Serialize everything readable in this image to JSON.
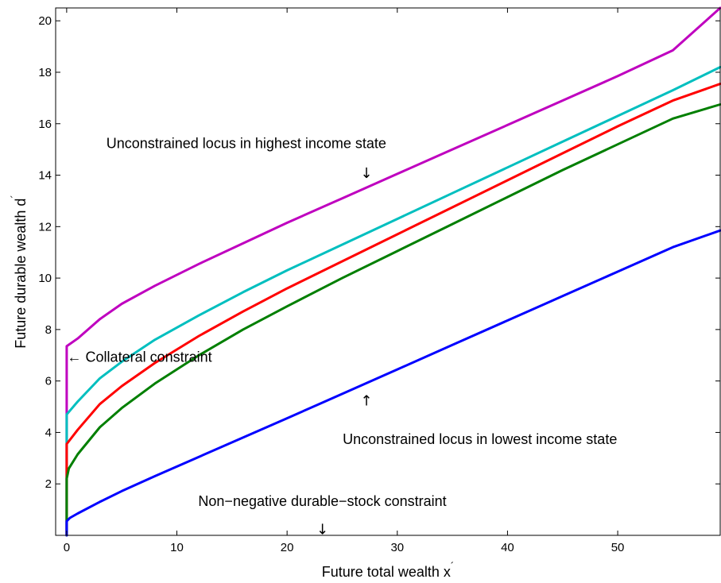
{
  "chart_data": {
    "type": "line",
    "xlabel": "Future total wealth x",
    "ylabel": "Future durable wealth d",
    "xlabel_prime": "´",
    "ylabel_prime": "´",
    "xlim": [
      -1,
      59.3
    ],
    "ylim": [
      0,
      20.5
    ],
    "xticks": [
      0,
      10,
      20,
      30,
      40,
      50
    ],
    "yticks": [
      2,
      4,
      6,
      8,
      10,
      12,
      14,
      16,
      18,
      20
    ],
    "grid": false,
    "series": [
      {
        "color": "#bf00bf",
        "x": [
          0,
          0,
          1,
          3,
          5,
          8,
          12,
          16,
          20,
          25,
          30,
          35,
          40,
          45,
          50,
          55,
          59.3
        ],
        "y": [
          0,
          7.35,
          7.65,
          8.4,
          9.0,
          9.7,
          10.55,
          11.35,
          12.15,
          13.1,
          14.05,
          15.0,
          15.95,
          16.9,
          17.85,
          18.85,
          20.5
        ]
      },
      {
        "color": "#00bfbf",
        "x": [
          0,
          0,
          1,
          3,
          5,
          8,
          12,
          16,
          20,
          25,
          30,
          35,
          40,
          45,
          50,
          55,
          59.3
        ],
        "y": [
          0,
          4.7,
          5.2,
          6.1,
          6.75,
          7.6,
          8.55,
          9.45,
          10.3,
          11.3,
          12.3,
          13.3,
          14.3,
          15.3,
          16.3,
          17.3,
          18.2
        ]
      },
      {
        "color": "#ff0000",
        "x": [
          0,
          0,
          1,
          3,
          5,
          8,
          12,
          16,
          20,
          25,
          30,
          35,
          40,
          45,
          50,
          55,
          59.3
        ],
        "y": [
          0,
          3.55,
          4.1,
          5.1,
          5.8,
          6.7,
          7.75,
          8.7,
          9.6,
          10.65,
          11.7,
          12.75,
          13.8,
          14.85,
          15.9,
          16.9,
          17.55
        ]
      },
      {
        "color": "#007f00",
        "x": [
          0,
          0,
          0.2,
          1,
          3,
          5,
          8,
          12,
          16,
          20,
          25,
          30,
          35,
          40,
          45,
          50,
          55,
          59.3
        ],
        "y": [
          0,
          2.2,
          2.6,
          3.15,
          4.2,
          4.95,
          5.9,
          7.0,
          8.0,
          8.9,
          10.0,
          11.05,
          12.1,
          13.15,
          14.2,
          15.2,
          16.2,
          16.75
        ]
      },
      {
        "color": "#0000ff",
        "x": [
          0,
          0,
          0.3,
          1,
          3,
          5,
          8,
          12,
          16,
          20,
          25,
          30,
          35,
          40,
          45,
          50,
          55,
          59.3
        ],
        "y": [
          0,
          0.55,
          0.68,
          0.85,
          1.3,
          1.72,
          2.3,
          3.05,
          3.8,
          4.55,
          5.5,
          6.45,
          7.4,
          8.35,
          9.3,
          10.25,
          11.2,
          11.85
        ]
      }
    ],
    "annotations": [
      {
        "text": "Unconstrained locus in highest income state",
        "x": 16.3,
        "y": 15.05
      },
      {
        "text": "↓",
        "x": 27.2,
        "y": 13.9
      },
      {
        "text": "← Collateral constraint",
        "x": 0.05,
        "y": 6.75
      },
      {
        "text": "↑",
        "x": 27.2,
        "y": 5.05
      },
      {
        "text": "Unconstrained locus in lowest income state",
        "x": 37.5,
        "y": 3.55
      },
      {
        "text": "Non−negative durable−stock constraint",
        "x": 23.2,
        "y": 1.15
      },
      {
        "text": "↓",
        "x": 23.2,
        "y": 0.05
      }
    ]
  }
}
